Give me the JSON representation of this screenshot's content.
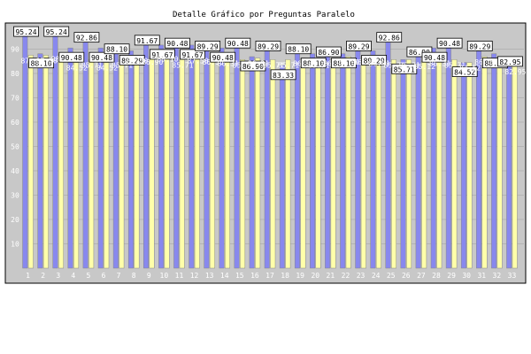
{
  "chart_data": {
    "type": "bar",
    "title": "Detalle Gráfico por Preguntas Paralelo",
    "xlabel": "",
    "ylabel": "",
    "ylim": [
      0,
      100
    ],
    "yticks": [
      10,
      20,
      30,
      40,
      50,
      60,
      70,
      80,
      90
    ],
    "grid": true,
    "categories": [
      "1",
      "2",
      "3",
      "4",
      "5",
      "6",
      "7",
      "8",
      "9",
      "10",
      "11",
      "12",
      "13",
      "14",
      "15",
      "16",
      "17",
      "18",
      "19",
      "20",
      "21",
      "22",
      "23",
      "24",
      "25",
      "26",
      "27",
      "28",
      "29",
      "30",
      "31",
      "32",
      "33"
    ],
    "series": [
      {
        "color": "#8888ee",
        "values": [
          95.24,
          88.1,
          95.24,
          90.48,
          92.86,
          90.48,
          88.1,
          89.29,
          91.67,
          91.67,
          90.48,
          91.67,
          89.29,
          90.48,
          90.48,
          86.9,
          89.29,
          83.33,
          88.1,
          88.1,
          86.9,
          88.1,
          89.29,
          89.29,
          92.86,
          85.71,
          86.9,
          90.48,
          90.48,
          84.52,
          89.29,
          88.1,
          82.95
        ]
      },
      {
        "color": "#ffffaa",
        "values": [
          87.5,
          87.5,
          88.1,
          84.52,
          85.71,
          84.52,
          85.71,
          87.5,
          86.9,
          88.1,
          85.71,
          87.5,
          86.9,
          86.31,
          85.71,
          86.31,
          85.71,
          85.71,
          86.31,
          85.71,
          86.31,
          86.9,
          86.9,
          86.31,
          85.71,
          85.71,
          85.12,
          86.31,
          85.71,
          84.52,
          86.9,
          86.9,
          82.95
        ]
      }
    ]
  }
}
